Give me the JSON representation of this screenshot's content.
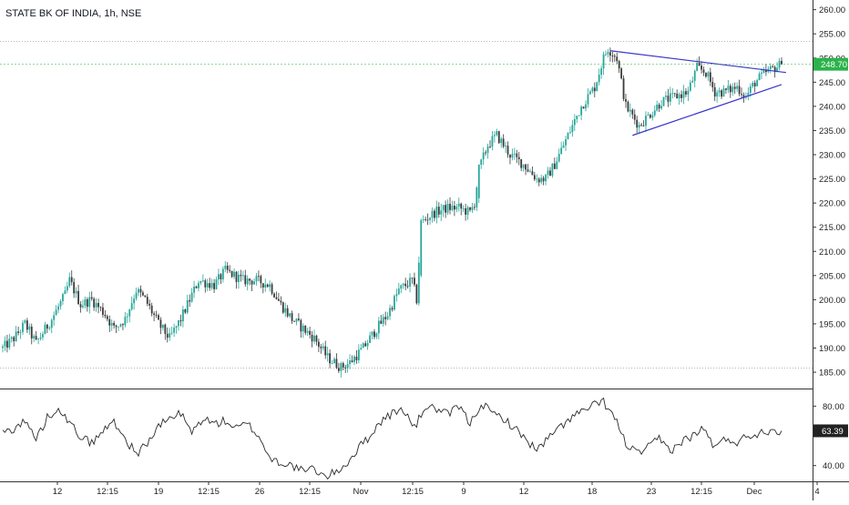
{
  "header": {
    "title": "STATE BK OF INDIA, 1h, NSE"
  },
  "chart_data": [
    {
      "type": "candlestick",
      "ylim": [
        182,
        262
      ],
      "y_ticks": [
        185,
        190,
        195,
        200,
        205,
        210,
        215,
        220,
        225,
        230,
        235,
        240,
        245,
        250,
        255,
        260
      ],
      "y_tick_labels": [
        "185.00",
        "190.00",
        "195.00",
        "200.00",
        "205.00",
        "210.00",
        "215.00",
        "220.00",
        "225.00",
        "230.00",
        "235.00",
        "240.00",
        "245.00",
        "250.00",
        "255.00",
        "260.00"
      ],
      "x_labels": [
        "12",
        "12:15",
        "19",
        "12:15",
        "26",
        "12:15",
        "Nov",
        "12:15",
        "9",
        "12",
        "18",
        "23",
        "12:15",
        "Dec",
        "4"
      ],
      "last_price": 248.7,
      "last_price_label": "248.70",
      "last_price_color": "#2bb34b",
      "up_color": "#26a69a",
      "down_color": "#3b3b3b",
      "reference_levels": [
        253.5,
        186.0
      ],
      "keypoints": [
        [
          0,
          190
        ],
        [
          5,
          192
        ],
        [
          10,
          195
        ],
        [
          15,
          191
        ],
        [
          22,
          196
        ],
        [
          28,
          201
        ],
        [
          30,
          204
        ],
        [
          35,
          199
        ],
        [
          40,
          200
        ],
        [
          46,
          197
        ],
        [
          50,
          194
        ],
        [
          55,
          196
        ],
        [
          60,
          202
        ],
        [
          64,
          200
        ],
        [
          70,
          195
        ],
        [
          75,
          192
        ],
        [
          80,
          196
        ],
        [
          88,
          204
        ],
        [
          95,
          203
        ],
        [
          100,
          206
        ],
        [
          104,
          205
        ],
        [
          108,
          204
        ],
        [
          114,
          204
        ],
        [
          120,
          203
        ],
        [
          125,
          199
        ],
        [
          130,
          196
        ],
        [
          135,
          194
        ],
        [
          140,
          192
        ],
        [
          146,
          188
        ],
        [
          152,
          186
        ],
        [
          156,
          187
        ],
        [
          162,
          190
        ],
        [
          168,
          194
        ],
        [
          173,
          197
        ],
        [
          178,
          202
        ],
        [
          184,
          204
        ],
        [
          186,
          200
        ],
        [
          188,
          216
        ],
        [
          194,
          218
        ],
        [
          200,
          219
        ],
        [
          205,
          219
        ],
        [
          210,
          218
        ],
        [
          212,
          220
        ],
        [
          214,
          227
        ],
        [
          218,
          232
        ],
        [
          222,
          234
        ],
        [
          228,
          230
        ],
        [
          234,
          228
        ],
        [
          240,
          225
        ],
        [
          244,
          225
        ],
        [
          248,
          228
        ],
        [
          252,
          232
        ],
        [
          256,
          236
        ],
        [
          260,
          240
        ],
        [
          266,
          244
        ],
        [
          270,
          250
        ],
        [
          272,
          252
        ],
        [
          276,
          250
        ],
        [
          278,
          245
        ],
        [
          280,
          240
        ],
        [
          283,
          238
        ],
        [
          286,
          236
        ],
        [
          290,
          238
        ],
        [
          296,
          241
        ],
        [
          302,
          242
        ],
        [
          308,
          243
        ],
        [
          312,
          248
        ],
        [
          316,
          247
        ],
        [
          320,
          243
        ],
        [
          324,
          243
        ],
        [
          330,
          244
        ],
        [
          334,
          242
        ],
        [
          338,
          245
        ],
        [
          343,
          247
        ],
        [
          347,
          248
        ],
        [
          350,
          248.7
        ]
      ],
      "trendlines": [
        {
          "name": "upper",
          "from": [
            273,
            251.5
          ],
          "to": [
            352,
            247.0
          ],
          "color": "#3a36c9"
        },
        {
          "name": "lower",
          "from": [
            283,
            234.0
          ],
          "to": [
            350,
            244.5
          ],
          "color": "#3a36c9"
        }
      ]
    },
    {
      "type": "line",
      "ylim": [
        30,
        90
      ],
      "y_ticks": [
        40,
        80
      ],
      "y_tick_labels": [
        "40.00",
        "80.00"
      ],
      "last_value": 63.39,
      "last_value_label": "63.39",
      "line_color": "#2a2a2a",
      "keypoints": [
        [
          0,
          62
        ],
        [
          5,
          65
        ],
        [
          10,
          70
        ],
        [
          15,
          58
        ],
        [
          20,
          72
        ],
        [
          25,
          80
        ],
        [
          30,
          68
        ],
        [
          35,
          60
        ],
        [
          40,
          55
        ],
        [
          45,
          63
        ],
        [
          50,
          70
        ],
        [
          55,
          58
        ],
        [
          60,
          48
        ],
        [
          65,
          55
        ],
        [
          70,
          66
        ],
        [
          75,
          72
        ],
        [
          80,
          75
        ],
        [
          85,
          62
        ],
        [
          90,
          72
        ],
        [
          95,
          68
        ],
        [
          100,
          70
        ],
        [
          105,
          65
        ],
        [
          110,
          68
        ],
        [
          115,
          60
        ],
        [
          120,
          45
        ],
        [
          125,
          42
        ],
        [
          130,
          40
        ],
        [
          135,
          36
        ],
        [
          140,
          38
        ],
        [
          145,
          32
        ],
        [
          150,
          36
        ],
        [
          155,
          42
        ],
        [
          160,
          52
        ],
        [
          165,
          60
        ],
        [
          170,
          70
        ],
        [
          175,
          75
        ],
        [
          180,
          78
        ],
        [
          185,
          65
        ],
        [
          190,
          80
        ],
        [
          195,
          78
        ],
        [
          200,
          74
        ],
        [
          205,
          80
        ],
        [
          210,
          68
        ],
        [
          215,
          82
        ],
        [
          220,
          75
        ],
        [
          225,
          72
        ],
        [
          230,
          65
        ],
        [
          235,
          58
        ],
        [
          240,
          50
        ],
        [
          245,
          58
        ],
        [
          250,
          65
        ],
        [
          255,
          72
        ],
        [
          260,
          76
        ],
        [
          265,
          80
        ],
        [
          270,
          83
        ],
        [
          275,
          72
        ],
        [
          280,
          55
        ],
        [
          285,
          48
        ],
        [
          290,
          52
        ],
        [
          295,
          58
        ],
        [
          300,
          50
        ],
        [
          305,
          56
        ],
        [
          310,
          60
        ],
        [
          315,
          65
        ],
        [
          320,
          52
        ],
        [
          325,
          58
        ],
        [
          330,
          56
        ],
        [
          335,
          60
        ],
        [
          340,
          62
        ],
        [
          345,
          64
        ],
        [
          350,
          63.39
        ]
      ]
    }
  ]
}
